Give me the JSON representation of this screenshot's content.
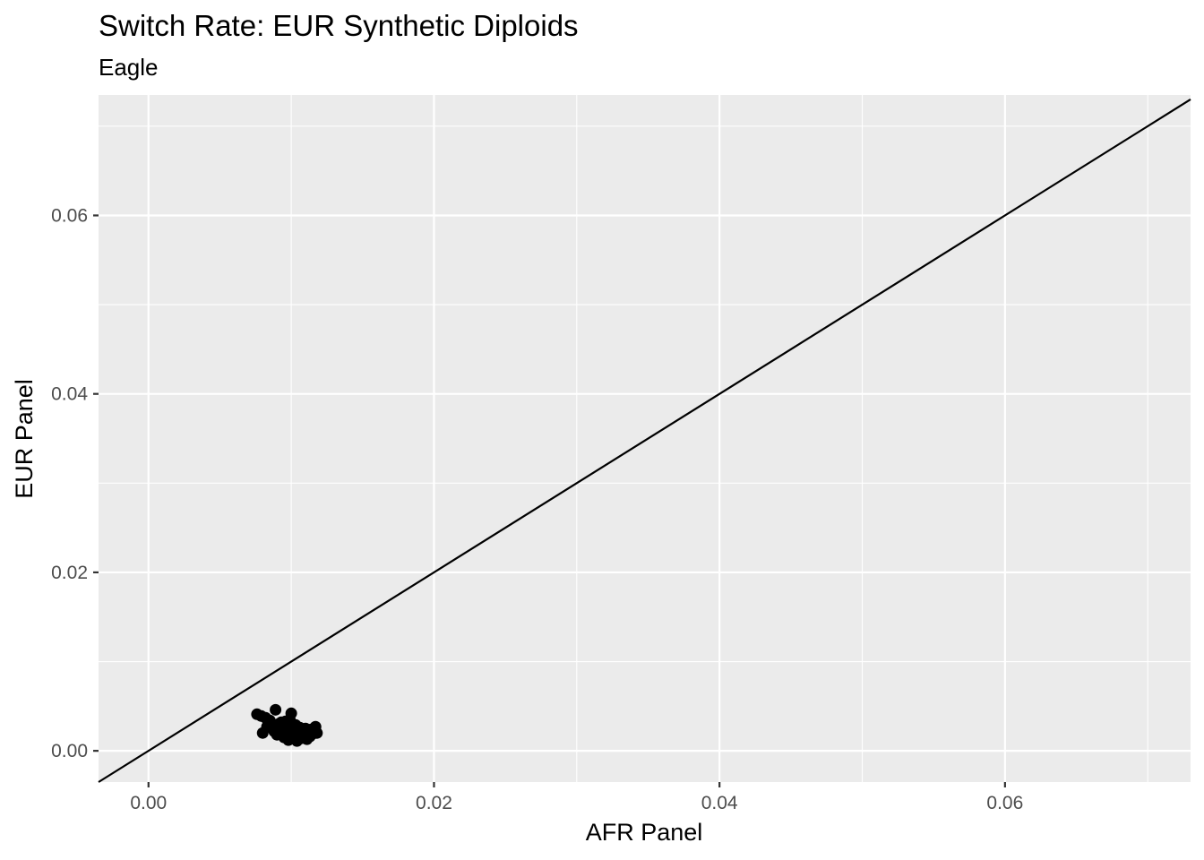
{
  "chart_data": {
    "type": "scatter",
    "title": "Switch Rate: EUR Synthetic Diploids",
    "subtitle": "Eagle",
    "xlabel": "AFR Panel",
    "ylabel": "EUR Panel",
    "xlim": [
      -0.0035,
      0.073
    ],
    "ylim": [
      -0.0035,
      0.0735
    ],
    "x_ticks": [
      0.0,
      0.02,
      0.04,
      0.06
    ],
    "x_tick_labels": [
      "0.00",
      "0.02",
      "0.04",
      "0.06"
    ],
    "y_ticks": [
      0.0,
      0.02,
      0.04,
      0.06
    ],
    "y_tick_labels": [
      "0.00",
      "0.02",
      "0.04",
      "0.06"
    ],
    "reference_line": {
      "slope": 1,
      "intercept": 0
    },
    "grid": true,
    "colors": {
      "panel_background": "#EBEBEB",
      "grid": "#FFFFFF",
      "points": "#000000",
      "line": "#000000"
    },
    "points": [
      [
        0.0076,
        0.0041
      ],
      [
        0.0079,
        0.0039
      ],
      [
        0.0082,
        0.0037
      ],
      [
        0.0085,
        0.0034
      ],
      [
        0.0089,
        0.0046
      ],
      [
        0.008,
        0.002
      ],
      [
        0.0083,
        0.0027
      ],
      [
        0.0086,
        0.003
      ],
      [
        0.0088,
        0.0022
      ],
      [
        0.009,
        0.0018
      ],
      [
        0.0092,
        0.0025
      ],
      [
        0.0093,
        0.0032
      ],
      [
        0.0095,
        0.0015
      ],
      [
        0.0095,
        0.0028
      ],
      [
        0.0097,
        0.0021
      ],
      [
        0.0098,
        0.0012
      ],
      [
        0.0099,
        0.0035
      ],
      [
        0.01,
        0.0042
      ],
      [
        0.0101,
        0.0024
      ],
      [
        0.0102,
        0.0017
      ],
      [
        0.0103,
        0.0029
      ],
      [
        0.0104,
        0.0011
      ],
      [
        0.0105,
        0.002
      ],
      [
        0.0106,
        0.0026
      ],
      [
        0.0107,
        0.0014
      ],
      [
        0.0108,
        0.0022
      ],
      [
        0.0109,
        0.0018
      ],
      [
        0.011,
        0.0025
      ],
      [
        0.0111,
        0.0013
      ],
      [
        0.0112,
        0.0021
      ],
      [
        0.0113,
        0.0016
      ],
      [
        0.0114,
        0.0024
      ],
      [
        0.0115,
        0.0019
      ],
      [
        0.0117,
        0.0027
      ],
      [
        0.0118,
        0.002
      ],
      [
        0.0091,
        0.003
      ],
      [
        0.0094,
        0.0023
      ],
      [
        0.0096,
        0.0033
      ],
      [
        0.01,
        0.0016
      ],
      [
        0.0087,
        0.0025
      ]
    ]
  }
}
